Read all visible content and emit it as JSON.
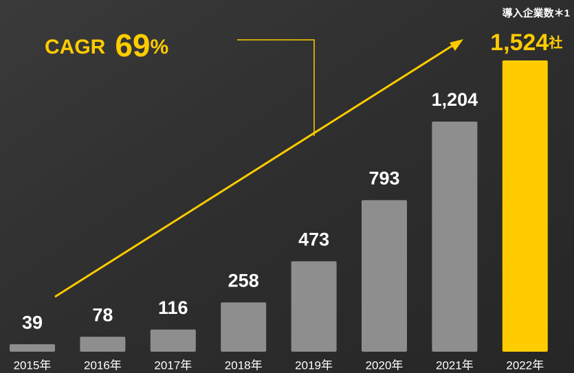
{
  "chart_data": {
    "type": "bar",
    "series_label": "導入企業数＊1",
    "annotation": {
      "prefix": "CAGR",
      "value": "69",
      "unit": "%"
    },
    "unit_label": "社",
    "categories": [
      "2015年",
      "2016年",
      "2017年",
      "2018年",
      "2019年",
      "2020年",
      "2021年",
      "2022年"
    ],
    "values": [
      39,
      78,
      116,
      258,
      473,
      793,
      1204,
      1524
    ],
    "value_labels": [
      "39",
      "78",
      "116",
      "258",
      "473",
      "793",
      "1,204",
      "1,524"
    ],
    "colors": [
      "#8e8e8e",
      "#8e8e8e",
      "#8e8e8e",
      "#8e8e8e",
      "#8e8e8e",
      "#8e8e8e",
      "#8e8e8e",
      "#ffcc00"
    ]
  }
}
